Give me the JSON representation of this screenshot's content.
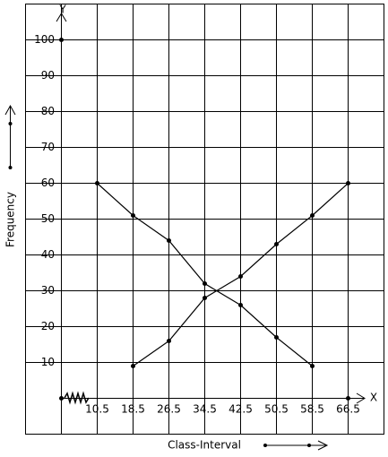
{
  "chart_data": {
    "type": "line",
    "x_label": "Class-Interval",
    "y_label": "Frequency",
    "x_axis_name": "X",
    "y_axis_name": "Y",
    "x": [
      10.5,
      18.5,
      26.5,
      34.5,
      42.5,
      50.5,
      58.5,
      66.5
    ],
    "series": [
      {
        "color": "#000000",
        "values": [
          60,
          51,
          44,
          32,
          26,
          17,
          9,
          null
        ]
      },
      {
        "color": "#000000",
        "values": [
          null,
          9,
          16,
          28,
          34,
          43,
          51,
          60
        ]
      }
    ],
    "xlim": [
      2.5,
      74.5
    ],
    "ylim": [
      0,
      110
    ],
    "xticks": [
      10.5,
      18.5,
      26.5,
      34.5,
      42.5,
      50.5,
      58.5,
      66.5
    ],
    "yticks": [
      10,
      20,
      30,
      40,
      50,
      60,
      70,
      80,
      90,
      100
    ],
    "grid": true
  }
}
